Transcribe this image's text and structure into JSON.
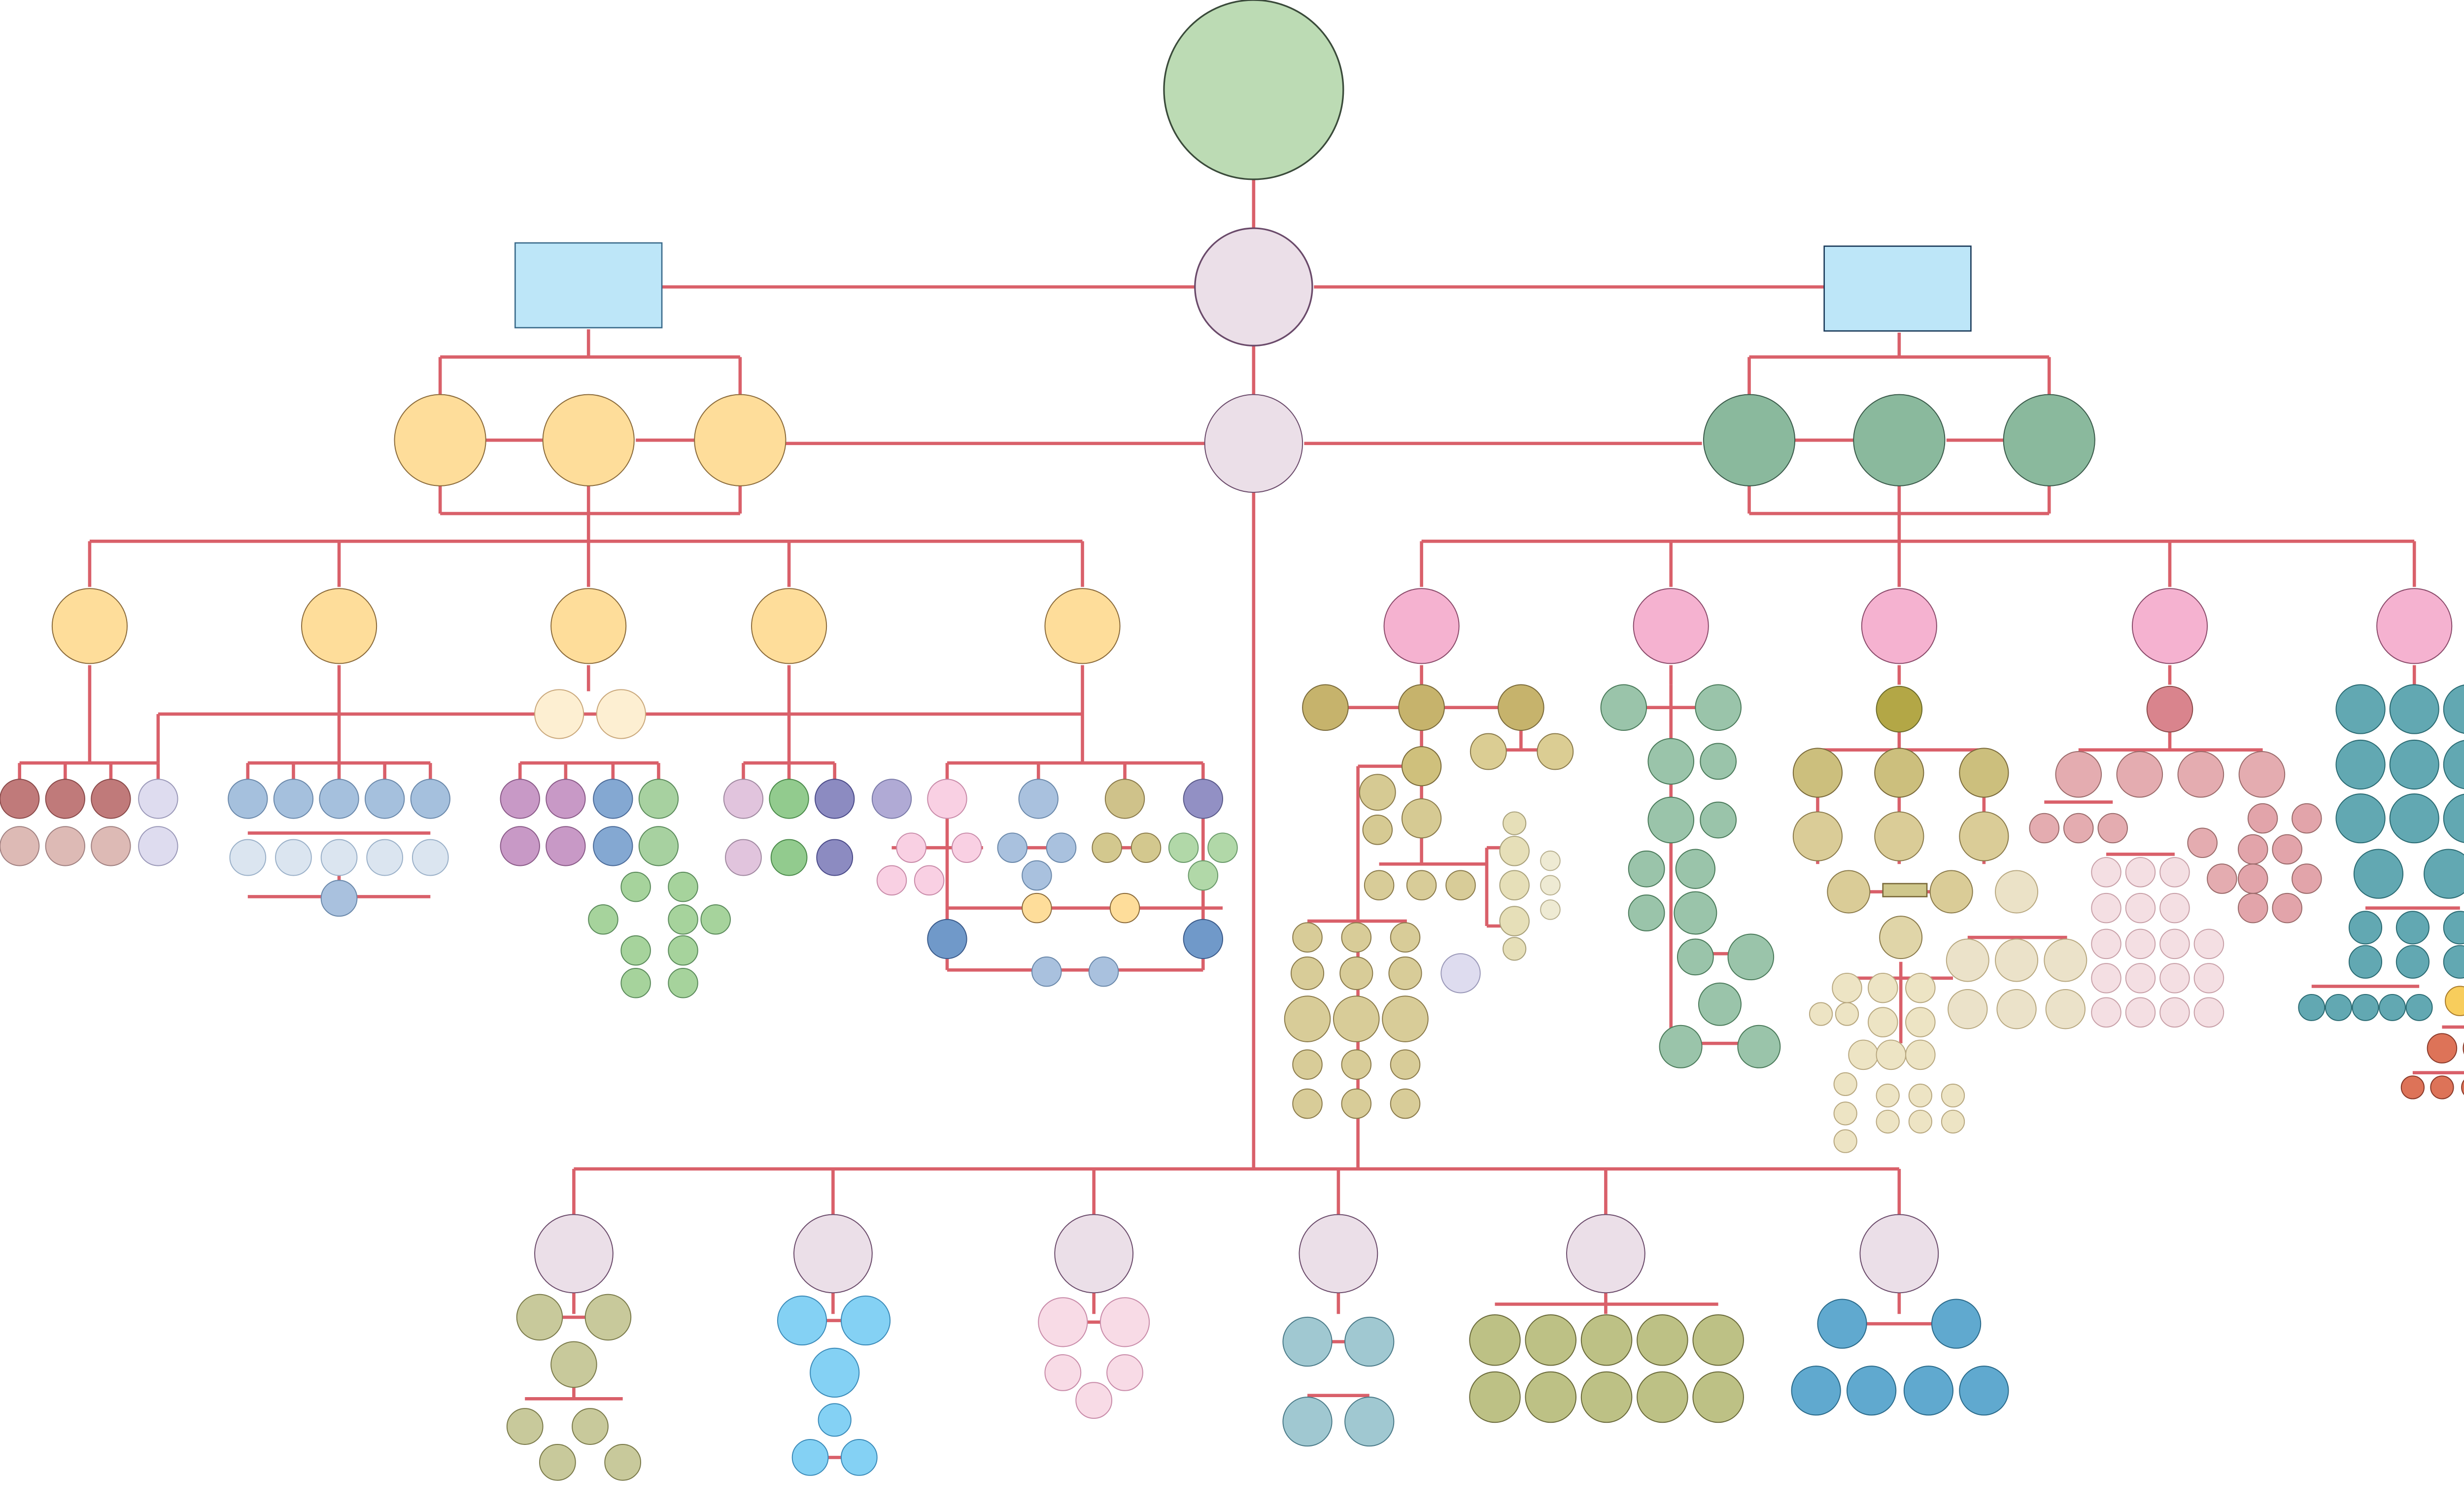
{
  "diagram": {
    "type": "hierarchy",
    "labels": [],
    "palette": {
      "root": "#bcdbb4",
      "hub": "#ebdfe8",
      "square": "#bde6f8",
      "orange": "#fedd9a",
      "pink": "#f5b2d0",
      "green": "#8ab99d",
      "edge": "#d9606a"
    }
  }
}
